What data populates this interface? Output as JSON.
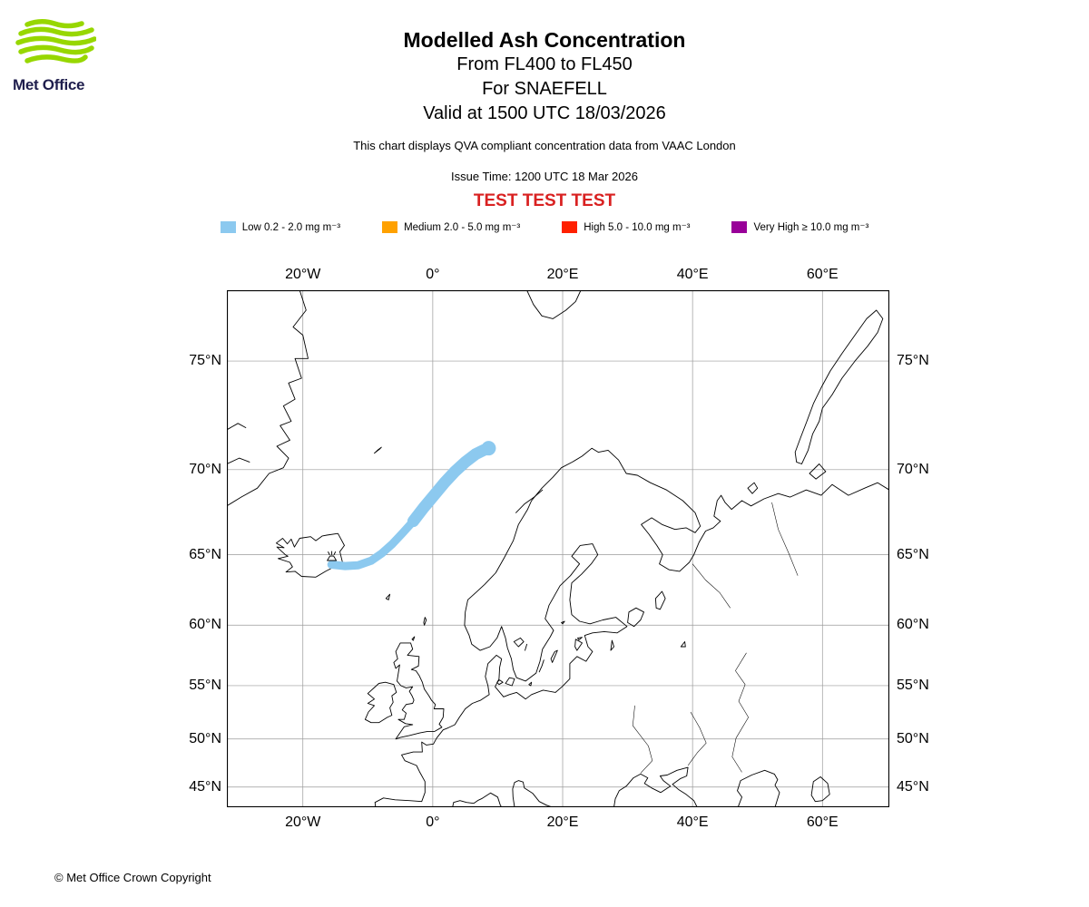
{
  "logo": {
    "text": "Met Office",
    "wave_color": "#97d700",
    "text_color": "#1f1e4d"
  },
  "header": {
    "title": "Modelled Ash Concentration",
    "subtitle_fl": "From FL400 to FL450",
    "subtitle_volcano": "For SNAEFELL",
    "subtitle_valid": "Valid at 1500 UTC 18/03/2026",
    "description": "This chart displays QVA compliant concentration data from VAAC London",
    "issue_time": "Issue Time: 1200 UTC 18 Mar 2026",
    "test_banner": "TEST TEST TEST",
    "test_banner_color": "#d92121"
  },
  "legend": {
    "items": [
      {
        "id": "low",
        "label": "Low 0.2 - 2.0 mg m⁻³",
        "color": "#8cc9ef"
      },
      {
        "id": "medium",
        "label": "Medium 2.0 - 5.0 mg m⁻³",
        "color": "#ffa100"
      },
      {
        "id": "high",
        "label": "High 5.0 - 10.0 mg m⁻³",
        "color": "#ff2000"
      },
      {
        "id": "very-high",
        "label": "Very High ≥ 10.0 mg m⁻³",
        "color": "#990099"
      }
    ]
  },
  "chart_data": {
    "type": "map",
    "projection": "mercator",
    "grid": true,
    "bounds": {
      "lon_min": -31.7,
      "lon_max": 70.3,
      "lat_min": 42.76,
      "lat_max": 77.58
    },
    "lon_ticks": [
      {
        "label": "20°W",
        "value": -20
      },
      {
        "label": "0°",
        "value": 0
      },
      {
        "label": "20°E",
        "value": 20
      },
      {
        "label": "40°E",
        "value": 40
      },
      {
        "label": "60°E",
        "value": 60
      }
    ],
    "lat_ticks": [
      {
        "label": "75°N",
        "value": 75
      },
      {
        "label": "70°N",
        "value": 70
      },
      {
        "label": "65°N",
        "value": 65
      },
      {
        "label": "60°N",
        "value": 60
      },
      {
        "label": "55°N",
        "value": 55
      },
      {
        "label": "50°N",
        "value": 50
      },
      {
        "label": "45°N",
        "value": 45
      }
    ],
    "volcano": {
      "name": "SNAEFELL",
      "lon": -15.55,
      "lat": 64.8
    },
    "ash_plume": {
      "level": "Low 0.2 - 2.0 mg m⁻³",
      "color": "#8cc9ef",
      "points_lonlat": [
        [
          -15.6,
          64.35
        ],
        [
          -13.5,
          64.25
        ],
        [
          -11.5,
          64.3
        ],
        [
          -9.5,
          64.6
        ],
        [
          -7.8,
          65.1
        ],
        [
          -6.2,
          65.7
        ],
        [
          -4.6,
          66.4
        ],
        [
          -3.0,
          67.1
        ],
        [
          -1.4,
          67.9
        ],
        [
          0.2,
          68.6
        ],
        [
          1.8,
          69.3
        ],
        [
          3.4,
          69.9
        ],
        [
          5.0,
          70.4
        ],
        [
          6.6,
          70.8
        ],
        [
          7.8,
          71.0
        ],
        [
          8.6,
          71.1
        ]
      ]
    }
  },
  "footer": {
    "copyright": "© Met Office Crown Copyright"
  }
}
